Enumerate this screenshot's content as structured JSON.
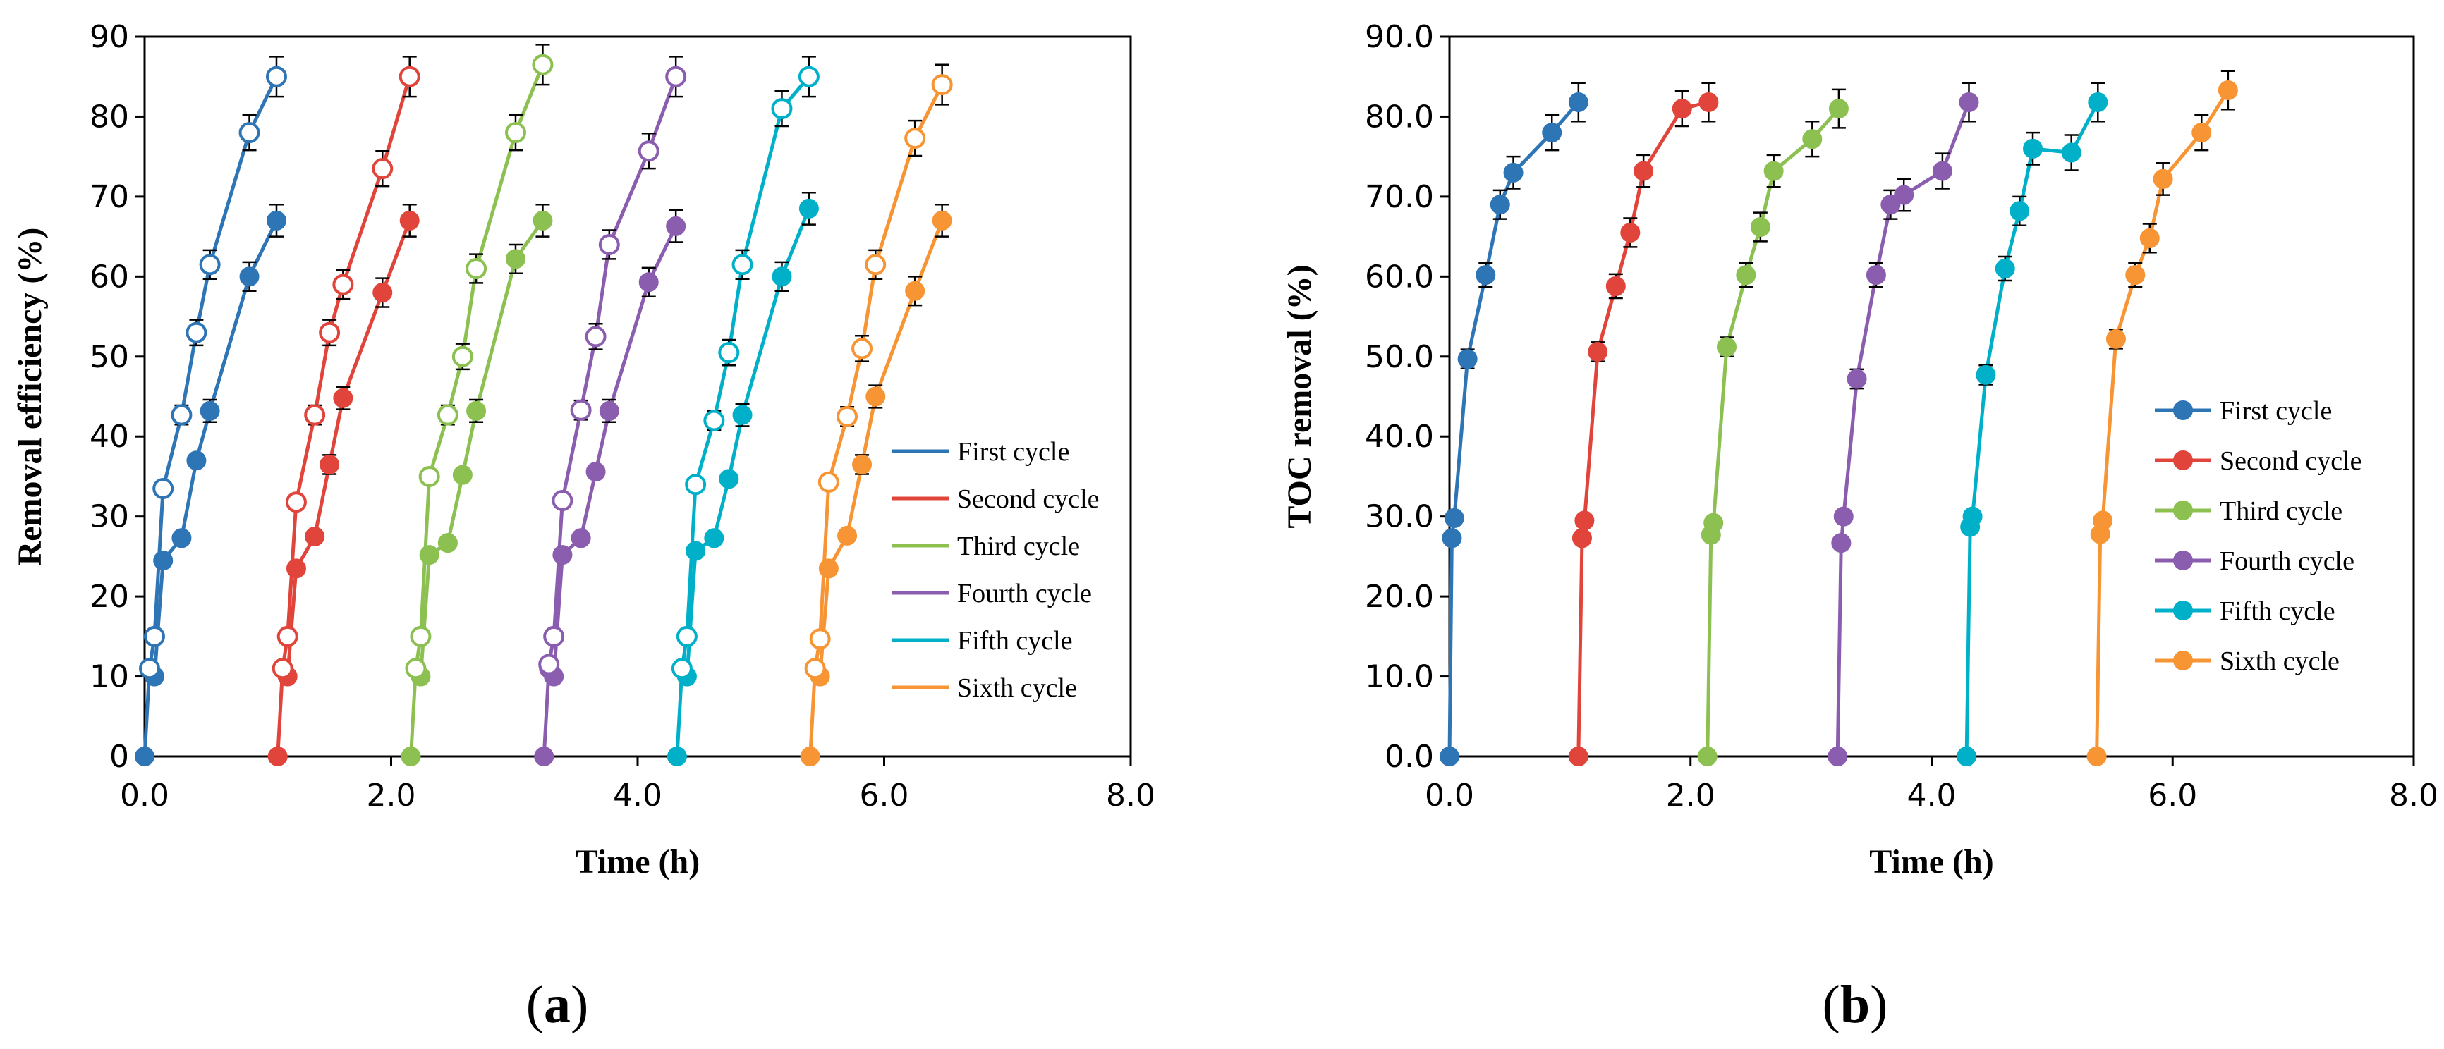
{
  "colors": {
    "First cycle": "#2E75B6",
    "Second cycle": "#E0443A",
    "Third cycle": "#8CC152",
    "Fourth cycle": "#8B5DAF",
    "Fifth cycle": "#00B0C8",
    "Sixth cycle": "#F79433"
  },
  "chart_data": [
    {
      "type": "scatter",
      "panel_label": {
        "open": "(",
        "letter": "a",
        "close": ")"
      },
      "title": "",
      "xlabel": "Time (h)",
      "ylabel": "Removal efficiency (%)",
      "xlim": [
        0,
        8
      ],
      "ylim": [
        0,
        90
      ],
      "xticks": [
        0,
        2,
        4,
        6,
        8
      ],
      "xtick_labels": [
        "0.0",
        "2.0",
        "4.0",
        "6.0",
        "8.0"
      ],
      "yticks": [
        0,
        10,
        20,
        30,
        40,
        50,
        60,
        70,
        80,
        90
      ],
      "ytick_labels": [
        "0",
        "10",
        "20",
        "30",
        "40",
        "50",
        "60",
        "70",
        "80",
        "90"
      ],
      "legend": {
        "position": "right-center"
      },
      "series": [
        {
          "name": "First cycle",
          "marker": "filled",
          "x": [
            0,
            0.04,
            0.08,
            0.15,
            0.3,
            0.42,
            0.53,
            0.85,
            1.07
          ],
          "y": [
            0,
            11,
            10,
            24.5,
            27.3,
            37,
            43.2,
            60,
            67
          ],
          "err": [
            0,
            0,
            0,
            0,
            0,
            0,
            1.4,
            1.8,
            2.0
          ]
        },
        {
          "name": "First cycle",
          "marker": "open",
          "x": [
            0.04,
            0.08,
            0.15,
            0.3,
            0.42,
            0.53,
            0.85,
            1.07
          ],
          "y": [
            11,
            15,
            33.5,
            42.7,
            53,
            61.5,
            78,
            85
          ],
          "err": [
            0,
            0,
            0,
            1.2,
            1.6,
            1.8,
            2.2,
            2.5
          ]
        },
        {
          "name": "Second cycle",
          "marker": "filled",
          "x": [
            1.08,
            1.12,
            1.16,
            1.23,
            1.38,
            1.5,
            1.61,
            1.93,
            2.15
          ],
          "y": [
            0,
            11,
            10,
            23.5,
            27.5,
            36.5,
            44.8,
            58,
            67
          ],
          "err": [
            0,
            0,
            0,
            0,
            0,
            1.2,
            1.4,
            1.8,
            2.0
          ]
        },
        {
          "name": "Second cycle",
          "marker": "open",
          "x": [
            1.12,
            1.16,
            1.23,
            1.38,
            1.5,
            1.61,
            1.93,
            2.15
          ],
          "y": [
            11,
            15,
            31.8,
            42.7,
            53,
            59,
            73.5,
            85
          ],
          "err": [
            0,
            0,
            0,
            1.2,
            1.6,
            1.8,
            2.2,
            2.5
          ]
        },
        {
          "name": "Third cycle",
          "marker": "filled",
          "x": [
            2.16,
            2.2,
            2.24,
            2.31,
            2.46,
            2.58,
            2.69,
            3.01,
            3.23
          ],
          "y": [
            0,
            11,
            10,
            25.2,
            26.7,
            35.2,
            43.2,
            62.2,
            67
          ],
          "err": [
            0,
            0,
            0,
            0,
            0,
            0,
            1.4,
            1.8,
            2.0
          ]
        },
        {
          "name": "Third cycle",
          "marker": "open",
          "x": [
            2.2,
            2.24,
            2.31,
            2.46,
            2.58,
            2.69,
            3.01,
            3.23
          ],
          "y": [
            11,
            15,
            35,
            42.7,
            50,
            61,
            78,
            86.5
          ],
          "err": [
            0,
            0,
            0,
            1.2,
            1.6,
            1.8,
            2.2,
            2.5
          ]
        },
        {
          "name": "Fourth cycle",
          "marker": "filled",
          "x": [
            3.24,
            3.28,
            3.32,
            3.39,
            3.54,
            3.66,
            3.77,
            4.09,
            4.31
          ],
          "y": [
            0,
            11,
            10,
            25.2,
            27.3,
            35.6,
            43.2,
            59.3,
            66.3
          ],
          "err": [
            0,
            0,
            0,
            0,
            0,
            0,
            1.4,
            1.8,
            2.0
          ]
        },
        {
          "name": "Fourth cycle",
          "marker": "open",
          "x": [
            3.28,
            3.32,
            3.39,
            3.54,
            3.66,
            3.77,
            4.09,
            4.31
          ],
          "y": [
            11.5,
            15,
            32,
            43.3,
            52.5,
            64,
            75.7,
            85
          ],
          "err": [
            0,
            0,
            0,
            1.2,
            1.6,
            1.8,
            2.2,
            2.5
          ]
        },
        {
          "name": "Fifth cycle",
          "marker": "filled",
          "x": [
            4.32,
            4.36,
            4.4,
            4.47,
            4.62,
            4.74,
            4.85,
            5.17,
            5.39
          ],
          "y": [
            0,
            11,
            10,
            25.7,
            27.3,
            34.7,
            42.7,
            60,
            68.5
          ],
          "err": [
            0,
            0,
            0,
            0,
            0,
            0,
            1.4,
            1.8,
            2.0
          ]
        },
        {
          "name": "Fifth cycle",
          "marker": "open",
          "x": [
            4.36,
            4.4,
            4.47,
            4.62,
            4.74,
            4.85,
            5.17,
            5.39
          ],
          "y": [
            11,
            15,
            34,
            42,
            50.5,
            61.5,
            81,
            85
          ],
          "err": [
            0,
            0,
            0,
            1.2,
            1.6,
            1.8,
            2.2,
            2.5
          ]
        },
        {
          "name": "Sixth cycle",
          "marker": "filled",
          "x": [
            5.4,
            5.44,
            5.48,
            5.55,
            5.7,
            5.82,
            5.93,
            6.25,
            6.47
          ],
          "y": [
            0,
            11,
            10,
            23.5,
            27.6,
            36.5,
            45,
            58.2,
            67
          ],
          "err": [
            0,
            0,
            0,
            0,
            0,
            1.2,
            1.4,
            1.8,
            2.0
          ]
        },
        {
          "name": "Sixth cycle",
          "marker": "open",
          "x": [
            5.44,
            5.48,
            5.55,
            5.7,
            5.82,
            5.93,
            6.25,
            6.47
          ],
          "y": [
            11,
            14.7,
            34.3,
            42.5,
            51,
            61.5,
            77.3,
            84
          ],
          "err": [
            0,
            0,
            0,
            1.2,
            1.6,
            1.8,
            2.2,
            2.5
          ]
        }
      ]
    },
    {
      "type": "scatter",
      "panel_label": {
        "open": "(",
        "letter": "b",
        "close": ")"
      },
      "title": "",
      "xlabel": "Time (h)",
      "ylabel": "TOC removal (%)",
      "xlim": [
        0,
        8
      ],
      "ylim": [
        0,
        90
      ],
      "xticks": [
        0,
        2,
        4,
        6,
        8
      ],
      "xtick_labels": [
        "0.0",
        "2.0",
        "4.0",
        "6.0",
        "8.0"
      ],
      "yticks": [
        0,
        10,
        20,
        30,
        40,
        50,
        60,
        70,
        80,
        90
      ],
      "ytick_labels": [
        "0.0",
        "10.0",
        "20.0",
        "30.0",
        "40.0",
        "50.0",
        "60.0",
        "70.0",
        "80.0",
        "90.0"
      ],
      "legend": {
        "position": "right-center"
      },
      "series": [
        {
          "name": "First cycle",
          "marker": "filled",
          "x": [
            0,
            0.02,
            0.04,
            0.15,
            0.3,
            0.42,
            0.53,
            0.85,
            1.07
          ],
          "y": [
            0,
            27.3,
            29.8,
            49.7,
            60.2,
            69,
            73,
            78,
            81.8
          ],
          "err": [
            0,
            0,
            0,
            1.2,
            1.5,
            1.8,
            2.0,
            2.2,
            2.4
          ]
        },
        {
          "name": "Second cycle",
          "marker": "filled",
          "x": [
            1.07,
            1.1,
            1.12,
            1.23,
            1.38,
            1.5,
            1.61,
            1.93,
            2.15
          ],
          "y": [
            0,
            27.3,
            29.5,
            50.6,
            58.8,
            65.5,
            73.2,
            81,
            81.8
          ],
          "err": [
            0,
            0,
            0,
            1.2,
            1.5,
            1.8,
            2.0,
            2.2,
            2.4
          ]
        },
        {
          "name": "Third cycle",
          "marker": "filled",
          "x": [
            2.14,
            2.17,
            2.19,
            2.3,
            2.46,
            2.58,
            2.69,
            3.01,
            3.23
          ],
          "y": [
            0,
            27.7,
            29.2,
            51.2,
            60.2,
            66.2,
            73.2,
            77.2,
            81
          ],
          "err": [
            0,
            0,
            0,
            1.2,
            1.5,
            1.8,
            2.0,
            2.2,
            2.4
          ]
        },
        {
          "name": "Fourth cycle",
          "marker": "filled",
          "x": [
            3.22,
            3.25,
            3.27,
            3.38,
            3.54,
            3.66,
            3.77,
            4.09,
            4.31
          ],
          "y": [
            0,
            26.7,
            30,
            47.2,
            60.2,
            69,
            70.2,
            73.2,
            81.8
          ],
          "err": [
            0,
            0,
            0,
            1.2,
            1.5,
            1.8,
            2.0,
            2.2,
            2.4
          ]
        },
        {
          "name": "Fifth cycle",
          "marker": "filled",
          "x": [
            4.29,
            4.32,
            4.34,
            4.45,
            4.61,
            4.73,
            4.84,
            5.16,
            5.38
          ],
          "y": [
            0,
            28.7,
            30,
            47.7,
            61,
            68.2,
            76,
            75.5,
            81.8
          ],
          "err": [
            0,
            0,
            0,
            1.2,
            1.5,
            1.8,
            2.0,
            2.2,
            2.4
          ]
        },
        {
          "name": "Sixth cycle",
          "marker": "filled",
          "x": [
            5.37,
            5.4,
            5.42,
            5.53,
            5.69,
            5.81,
            5.92,
            6.24,
            6.46
          ],
          "y": [
            0,
            27.8,
            29.5,
            52.2,
            60.2,
            64.8,
            72.2,
            78,
            83.3
          ],
          "err": [
            0,
            0,
            0,
            1.2,
            1.5,
            1.8,
            2.0,
            2.2,
            2.4
          ]
        }
      ]
    }
  ]
}
